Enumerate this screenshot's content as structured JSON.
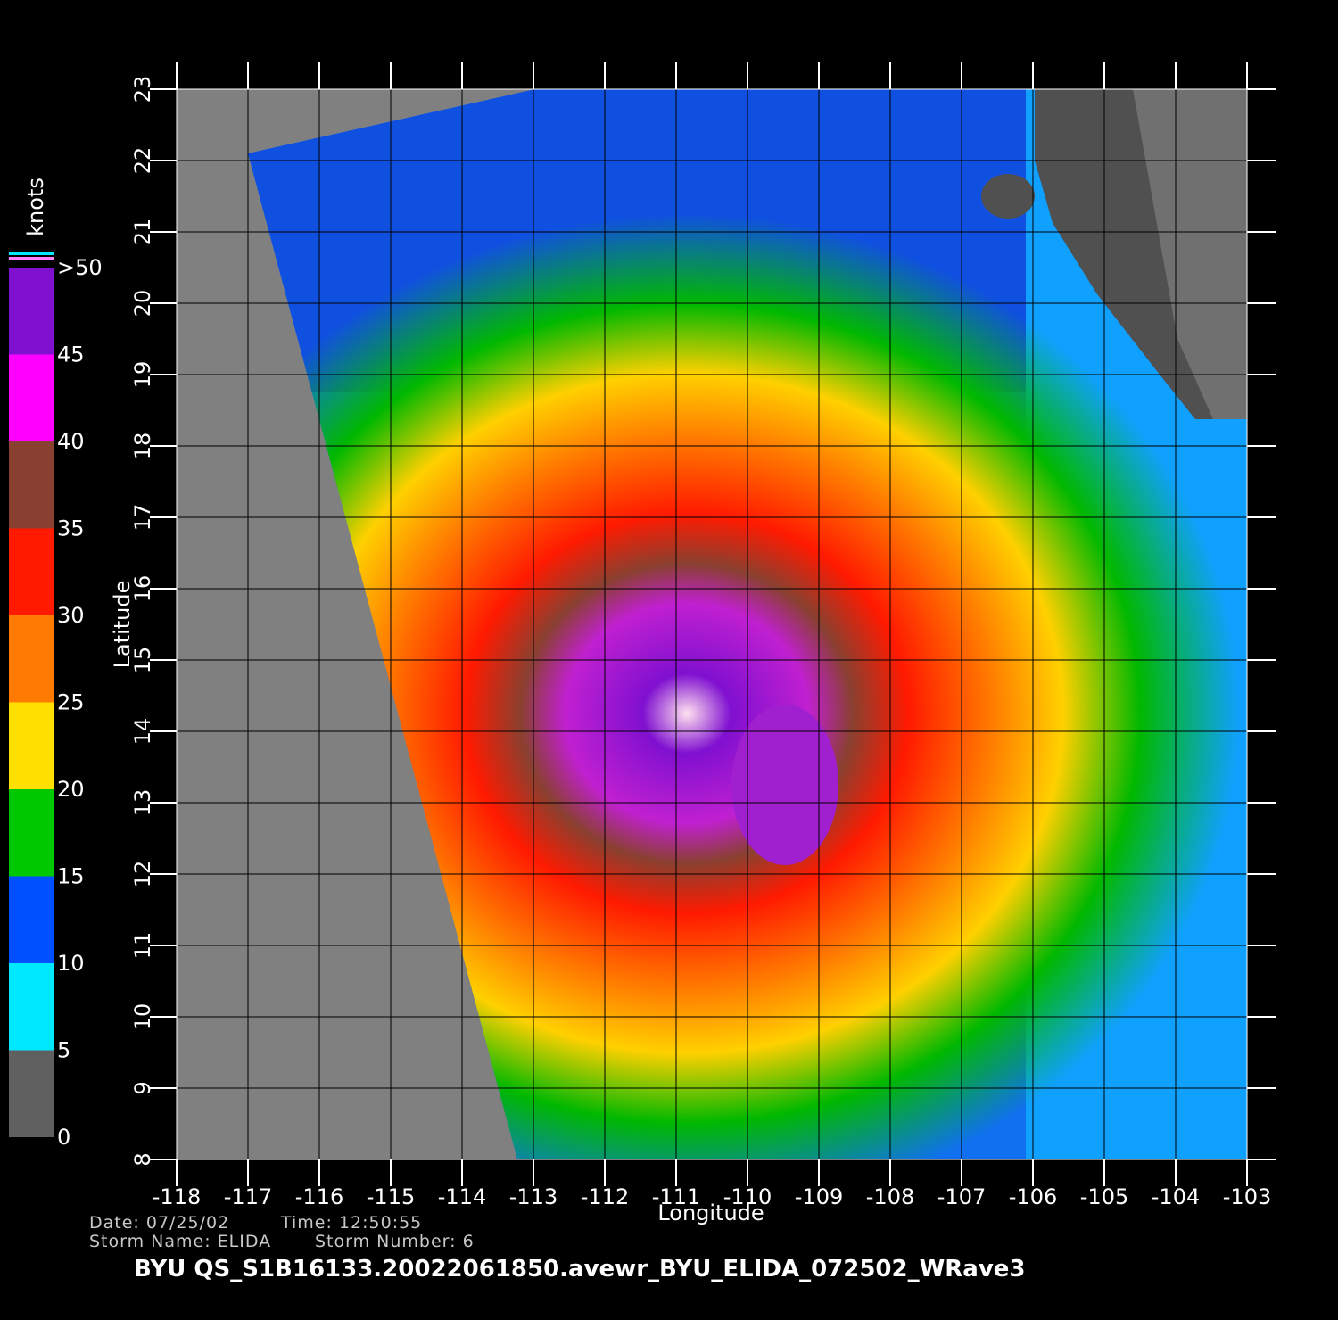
{
  "map": {
    "xticks": [
      -118,
      -117,
      -116,
      -115,
      -114,
      -113,
      -112,
      -111,
      -110,
      -109,
      -108,
      -107,
      -106,
      -105,
      -104,
      -103
    ],
    "yticks": [
      8,
      9,
      10,
      11,
      12,
      13,
      14,
      15,
      16,
      17,
      18,
      19,
      20,
      21,
      22,
      23
    ],
    "xlim": [
      -118,
      -103
    ],
    "ylim": [
      8,
      23
    ],
    "xlabel": "Longitude",
    "ylabel": "Latitude",
    "grid": true
  },
  "colorbar": {
    "unit": "knots",
    "lim": [
      0,
      50
    ],
    "levels": [
      0,
      5,
      10,
      15,
      20,
      25,
      30,
      35,
      40,
      45,
      {
        "value": 50,
        "label": ">50"
      }
    ],
    "colors": [
      "#606060",
      "#00e8ff",
      "#0050ff",
      "#00c800",
      "#ffe000",
      "#ff7a00",
      "#ff1a00",
      "#8a4030",
      "#ff00ff",
      "#8010d0"
    ]
  },
  "footer": {
    "date": "Date: 07/25/02",
    "time": "Time: 12:50:55",
    "storm_name": "Storm Name: ELIDA",
    "storm_number": "Storm Number: 6",
    "title": "BYU QS_S1B16133.20022061850.avewr_BYU_ELIDA_072502_WRave3"
  }
}
